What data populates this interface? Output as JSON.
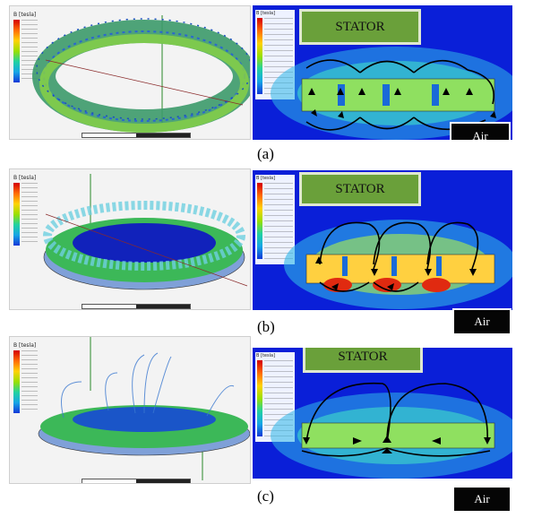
{
  "panels": [
    {
      "caption": "(a)",
      "stator_label": "STATOR",
      "air_label": "Air"
    },
    {
      "caption": "(b)",
      "stator_label": "STATOR",
      "air_label": "Air"
    },
    {
      "caption": "(c)",
      "stator_label": "STATOR",
      "air_label": "Air"
    }
  ],
  "legend_header": "B [tesla]",
  "colors": {
    "field_background": "#0a1fd8",
    "stator_box": "#6aa03a",
    "air_box": "#050505"
  }
}
